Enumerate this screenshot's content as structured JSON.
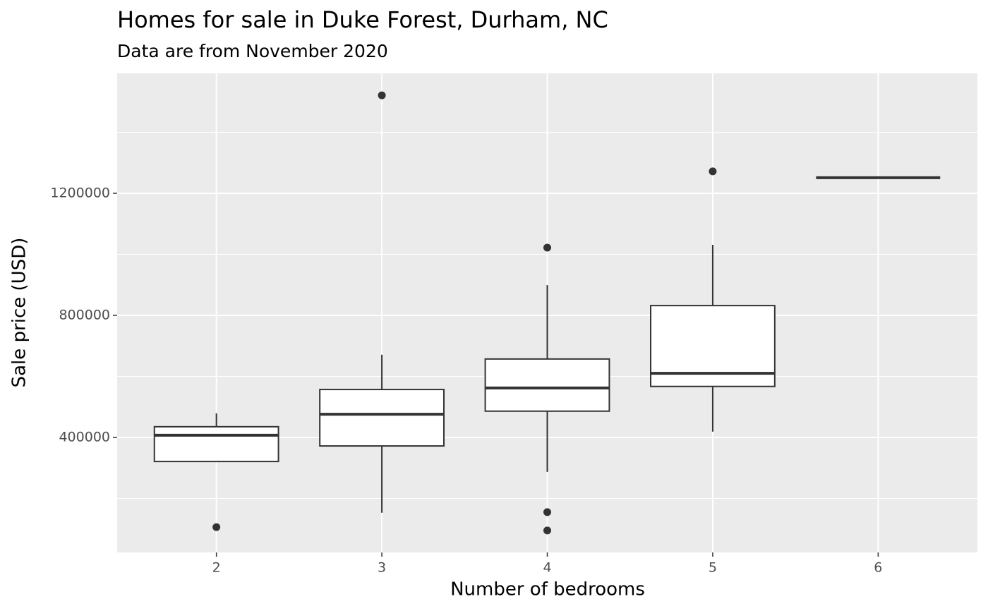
{
  "chart_data": {
    "type": "box",
    "title": "Homes for sale in Duke Forest, Durham, NC",
    "subtitle": "Data are from November 2020",
    "x_label": "Number of bedrooms",
    "y_label": "Sale price (USD)",
    "categories": [
      "2",
      "3",
      "4",
      "5",
      "6"
    ],
    "boxes": [
      {
        "min": 321000,
        "q1": 321000,
        "median": 407000,
        "q3": 435000,
        "max": 479000,
        "outliers": [
          106000
        ]
      },
      {
        "min": 153000,
        "q1": 372000,
        "median": 476000,
        "q3": 557000,
        "max": 671000,
        "outliers": [
          1521000
        ]
      },
      {
        "min": 287000,
        "q1": 486000,
        "median": 562000,
        "q3": 657000,
        "max": 899000,
        "outliers": [
          1022000,
          155000,
          95000
        ]
      },
      {
        "min": 419000,
        "q1": 567000,
        "median": 610000,
        "q3": 832000,
        "max": 1031000,
        "outliers": [
          1272000
        ]
      },
      {
        "min": 1251000,
        "q1": 1251000,
        "median": 1251000,
        "q3": 1251000,
        "max": 1251000,
        "outliers": []
      }
    ],
    "color": "#333333",
    "box_fill": "#ffffff",
    "panel_color": "#ebebeb",
    "ylim": [
      23000,
      1593000
    ],
    "yticks": [
      400000,
      800000,
      1200000
    ],
    "minor_yticks": [
      200000,
      600000,
      1000000,
      1400000
    ],
    "grid": true
  }
}
